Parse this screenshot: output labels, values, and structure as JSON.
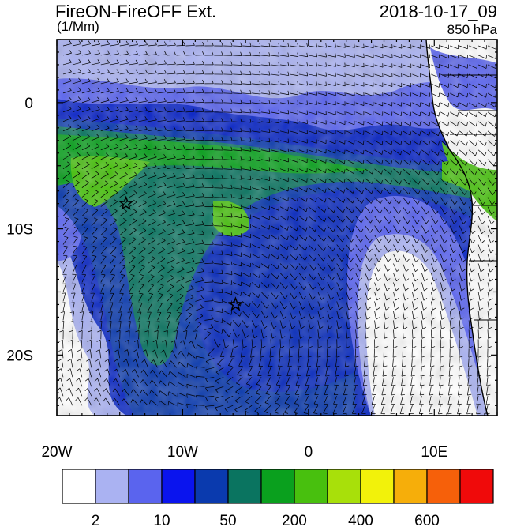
{
  "header": {
    "title_left": "FireON-FireOFF Ext.",
    "units": "(1/Mm)",
    "title_right": "2018-10-17_09",
    "level": "850 hPa"
  },
  "axes": {
    "lon_labels": [
      "20W",
      "10W",
      "0",
      "10E"
    ],
    "lat_labels": [
      "0",
      "10S",
      "20S"
    ]
  },
  "legend": {
    "colors": [
      "#ffffff",
      "#aab2f2",
      "#5a64ee",
      "#0a14ee",
      "#0a3aae",
      "#0a7460",
      "#0aa01e",
      "#48c00e",
      "#a8e00a",
      "#f2f20a",
      "#f6ae0a",
      "#f6600a",
      "#f00a0a"
    ],
    "labels": [
      {
        "text": "2",
        "boundary": 1
      },
      {
        "text": "10",
        "boundary": 3
      },
      {
        "text": "50",
        "boundary": 5
      },
      {
        "text": "200",
        "boundary": 7
      },
      {
        "text": "400",
        "boundary": 9
      },
      {
        "text": "600",
        "boundary": 11
      }
    ]
  },
  "markers": [
    {
      "name": "star-marker-north",
      "lon": -14.5,
      "lat": -8.0
    },
    {
      "name": "star-marker-south",
      "lon": -5.8,
      "lat": -16.0
    }
  ]
}
